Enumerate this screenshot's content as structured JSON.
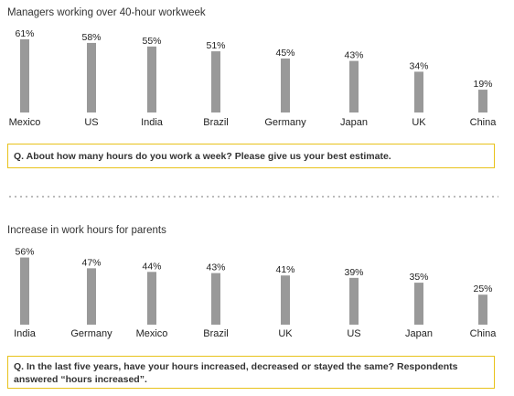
{
  "chart_data": [
    {
      "type": "bar",
      "title": "Managers working over 40-hour workweek",
      "categories": [
        "Mexico",
        "US",
        "India",
        "Brazil",
        "Germany",
        "Japan",
        "UK",
        "China"
      ],
      "values": [
        61,
        58,
        55,
        51,
        45,
        43,
        34,
        19
      ],
      "data_labels": [
        "61%",
        "58%",
        "55%",
        "51%",
        "45%",
        "43%",
        "34%",
        "19%"
      ],
      "bar_color": "#999999",
      "legend": "none",
      "grid": false
    },
    {
      "type": "bar",
      "title": "Increase in work hours for parents",
      "categories": [
        "India",
        "Germany",
        "Mexico",
        "Brazil",
        "UK",
        "US",
        "Japan",
        "China"
      ],
      "values": [
        56,
        47,
        44,
        43,
        41,
        39,
        35,
        25
      ],
      "data_labels": [
        "56%",
        "47%",
        "44%",
        "43%",
        "41%",
        "39%",
        "35%",
        "25%"
      ],
      "bar_color": "#999999",
      "legend": "none",
      "grid": false
    }
  ],
  "questions": [
    "Q. About how many hours do you work a week? Please give us your best estimate.",
    "Q. In the last five years, have your hours increased, decreased or stayed the same? Respondents answered “hours increased”."
  ],
  "colors": {
    "accent_border": "#e8c21a",
    "divider": "#bbbbbb"
  }
}
